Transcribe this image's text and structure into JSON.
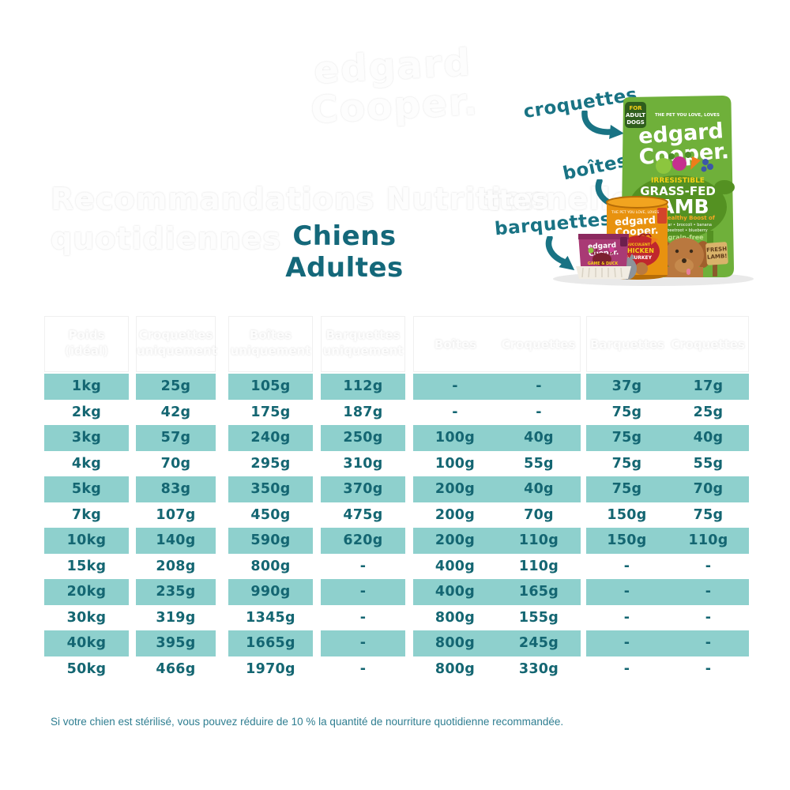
{
  "watermark": {
    "line1": "edgard",
    "line2": "Cooper."
  },
  "ghost_heading": {
    "line1": "Recommandations Nutritionnelles",
    "line2": "quotidiennes",
    "fragment": "ttes"
  },
  "title": "Chiens Adultes",
  "pointer_labels": {
    "croquettes": "croquettes",
    "boites": "boîtes",
    "barquettes": "barquettes"
  },
  "products": {
    "bag": {
      "badge_line1": "FOR",
      "badge_line2": "ADULT",
      "badge_line3": "DOGS",
      "tagline": "THE PET YOU LOVE, LOVES",
      "brand_line1": "edgard",
      "brand_line2": "Cooper.",
      "flavor_tag": "IRRESISTIBLE",
      "flavor_line1": "GRASS-FED",
      "flavor_line2": "LAMB",
      "boost": "Healthy Boost of",
      "ingredients1": "pear • broccoli • banana",
      "ingredients2": "beetroot • blueberry",
      "grain": "grain-free",
      "sign_line1": "FRESH",
      "sign_line2": "LAMB!"
    },
    "can": {
      "tagline": "THE PET YOU LOVE, LOVES",
      "brand_line1": "edgard",
      "brand_line2": "Cooper.",
      "tag": "SUCCULENT",
      "flavor_line1": "CHICKEN",
      "flavor_line2": "& TURKEY"
    },
    "tray": {
      "brand_line1": "edgard",
      "brand_line2": "Cooper.",
      "flavor": "GAME & DUCK"
    }
  },
  "table": {
    "headers": {
      "col1_line1": "Poids",
      "col1_line2": "(idéal)",
      "col2_line1": "Croquettes",
      "col2_line2": "uniquement",
      "col3_line1": "Boîtes",
      "col3_line2": "uniquement",
      "col4_line1": "Barquettes",
      "col4_line2": "uniquement",
      "group1_a": "Boîtes",
      "group1_b": "Croquettes",
      "group2_a": "Barquettes",
      "group2_b": "Croquettes"
    },
    "rows": [
      [
        "1kg",
        "25g",
        "105g",
        "112g",
        "-",
        "-",
        "37g",
        "17g"
      ],
      [
        "2kg",
        "42g",
        "175g",
        "187g",
        "-",
        "-",
        "75g",
        "25g"
      ],
      [
        "3kg",
        "57g",
        "240g",
        "250g",
        "100g",
        "40g",
        "75g",
        "40g"
      ],
      [
        "4kg",
        "70g",
        "295g",
        "310g",
        "100g",
        "55g",
        "75g",
        "55g"
      ],
      [
        "5kg",
        "83g",
        "350g",
        "370g",
        "200g",
        "40g",
        "75g",
        "70g"
      ],
      [
        "7kg",
        "107g",
        "450g",
        "475g",
        "200g",
        "70g",
        "150g",
        "75g"
      ],
      [
        "10kg",
        "140g",
        "590g",
        "620g",
        "200g",
        "110g",
        "150g",
        "110g"
      ],
      [
        "15kg",
        "208g",
        "800g",
        "-",
        "400g",
        "110g",
        "-",
        "-"
      ],
      [
        "20kg",
        "235g",
        "990g",
        "-",
        "400g",
        "165g",
        "-",
        "-"
      ],
      [
        "30kg",
        "319g",
        "1345g",
        "-",
        "800g",
        "155g",
        "-",
        "-"
      ],
      [
        "40kg",
        "395g",
        "1665g",
        "-",
        "800g",
        "245g",
        "-",
        "-"
      ],
      [
        "50kg",
        "466g",
        "1970g",
        "-",
        "800g",
        "330g",
        "-",
        "-"
      ]
    ]
  },
  "footer_note": "Si votre chien est stérilisé, vous pouvez réduire de 10 % la quantité de nourriture quotidienne recommandée.",
  "colors": {
    "cell_teal": "#8ed0cd",
    "cell_text": "#146672",
    "title_teal": "#14687a",
    "label_teal": "#197384",
    "bag_green": "#6fb03a",
    "can_orange": "#e8920f",
    "tray_magenta": "#a93a75",
    "footer_teal": "#2f7e91"
  }
}
